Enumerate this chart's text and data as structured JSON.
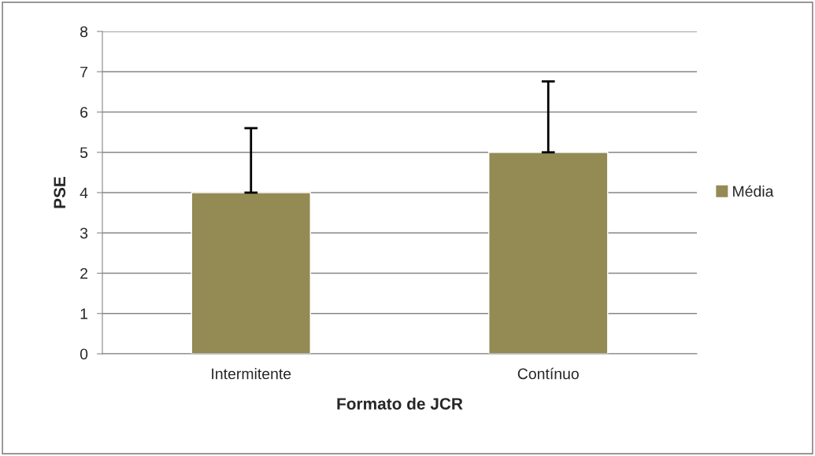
{
  "chart_data": {
    "type": "bar",
    "xlabel": "Formato de JCR",
    "ylabel": "PSE",
    "categories": [
      "Intermitente",
      "Contínuo"
    ],
    "series": [
      {
        "name": "Média",
        "color": "#948a54",
        "values": [
          4,
          5
        ],
        "errors": [
          [
            4,
            5.6
          ],
          [
            5,
            6.76
          ]
        ]
      }
    ],
    "ylim": [
      0,
      8
    ],
    "yticks": [
      0,
      1,
      2,
      3,
      4,
      5,
      6,
      7,
      8
    ],
    "grid": "y",
    "legend": "right"
  }
}
